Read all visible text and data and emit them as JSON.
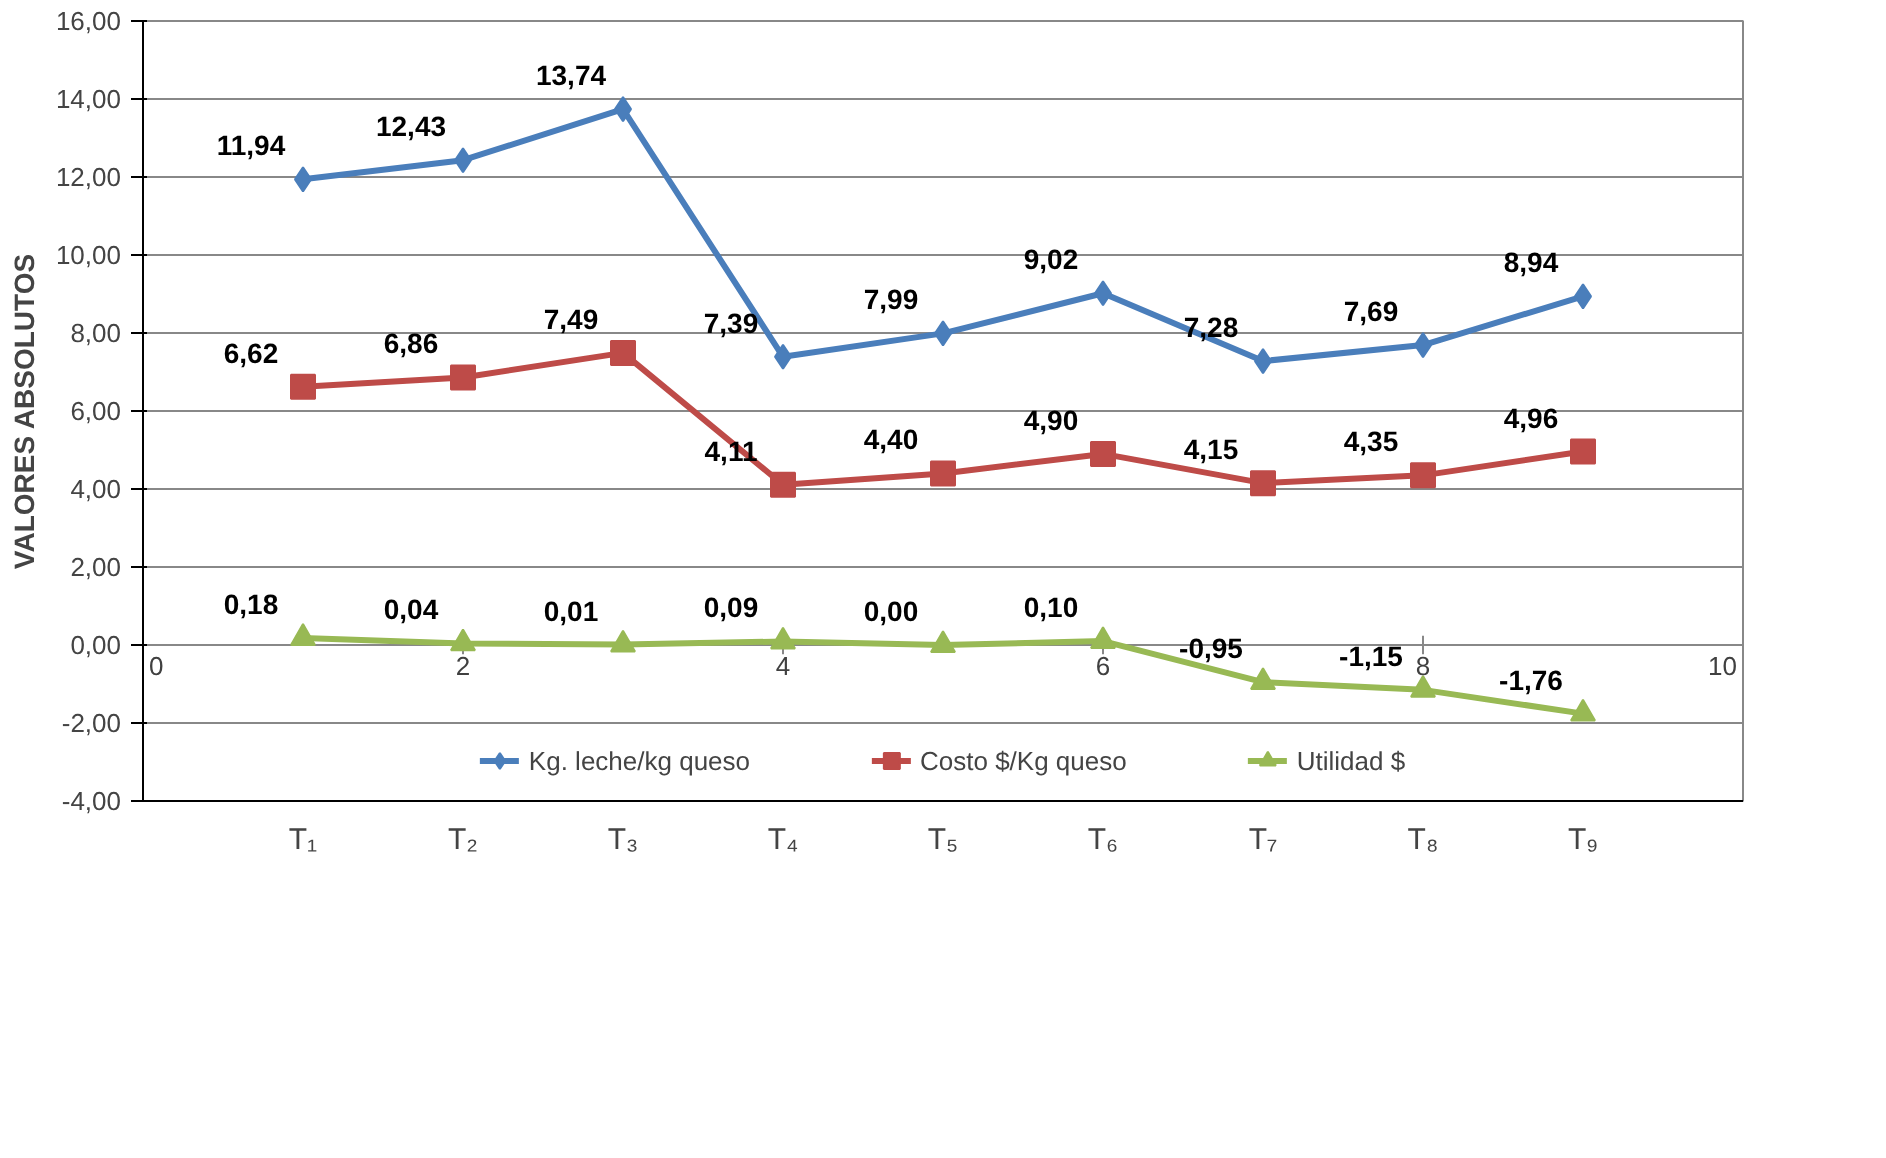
{
  "chart_data": {
    "type": "line",
    "ylabel": "VALORES ABSOLUTOS",
    "x": [
      1,
      2,
      3,
      4,
      5,
      6,
      7,
      8,
      9
    ],
    "xlim": [
      0,
      10
    ],
    "xticks": [
      0,
      2,
      4,
      6,
      8,
      10
    ],
    "annotations": [
      "T₁",
      "T₂",
      "T₃",
      "T₄",
      "T₅",
      "T₆",
      "T₇",
      "T₈",
      "T₉"
    ],
    "ylim": [
      -4,
      16
    ],
    "yticks": [
      {
        "value": -4,
        "label": "-4,00"
      },
      {
        "value": -2,
        "label": "-2,00"
      },
      {
        "value": 0,
        "label": "0,00"
      },
      {
        "value": 2,
        "label": "2,00"
      },
      {
        "value": 4,
        "label": "4,00"
      },
      {
        "value": 6,
        "label": "6,00"
      },
      {
        "value": 8,
        "label": "8,00"
      },
      {
        "value": 10,
        "label": "10,00"
      },
      {
        "value": 12,
        "label": "12,00"
      },
      {
        "value": 14,
        "label": "14,00"
      },
      {
        "value": 16,
        "label": "16,00"
      }
    ],
    "grid": "y",
    "legend": "bottom",
    "series": [
      {
        "name": "Kg. leche/kg queso",
        "color": "#4a7ebb",
        "marker": "diamond",
        "values": [
          11.94,
          12.43,
          13.74,
          7.39,
          7.99,
          9.02,
          7.28,
          7.69,
          8.94
        ],
        "value_labels": [
          "11,94",
          "12,43",
          "13,74",
          "7,39",
          "7,99",
          "9,02",
          "7,28",
          "7,69",
          "8,94"
        ]
      },
      {
        "name": "Costo $/Kg queso",
        "color": "#be4b48",
        "marker": "square",
        "values": [
          6.62,
          6.86,
          7.49,
          4.11,
          4.4,
          4.9,
          4.15,
          4.35,
          4.96
        ],
        "value_labels": [
          "6,62",
          "6,86",
          "7,49",
          "4,11",
          "4,40",
          "4,90",
          "4,15",
          "4,35",
          "4,96"
        ]
      },
      {
        "name": "Utilidad $",
        "color": "#98b954",
        "marker": "triangle",
        "values": [
          0.18,
          0.04,
          0.01,
          0.09,
          0.0,
          0.1,
          -0.95,
          -1.15,
          -1.76
        ],
        "value_labels": [
          "0,18",
          "0,04",
          "0,01",
          "0,09",
          "0,00",
          "0,10",
          "-0,95",
          "-1,15",
          "-1,76"
        ]
      }
    ]
  }
}
